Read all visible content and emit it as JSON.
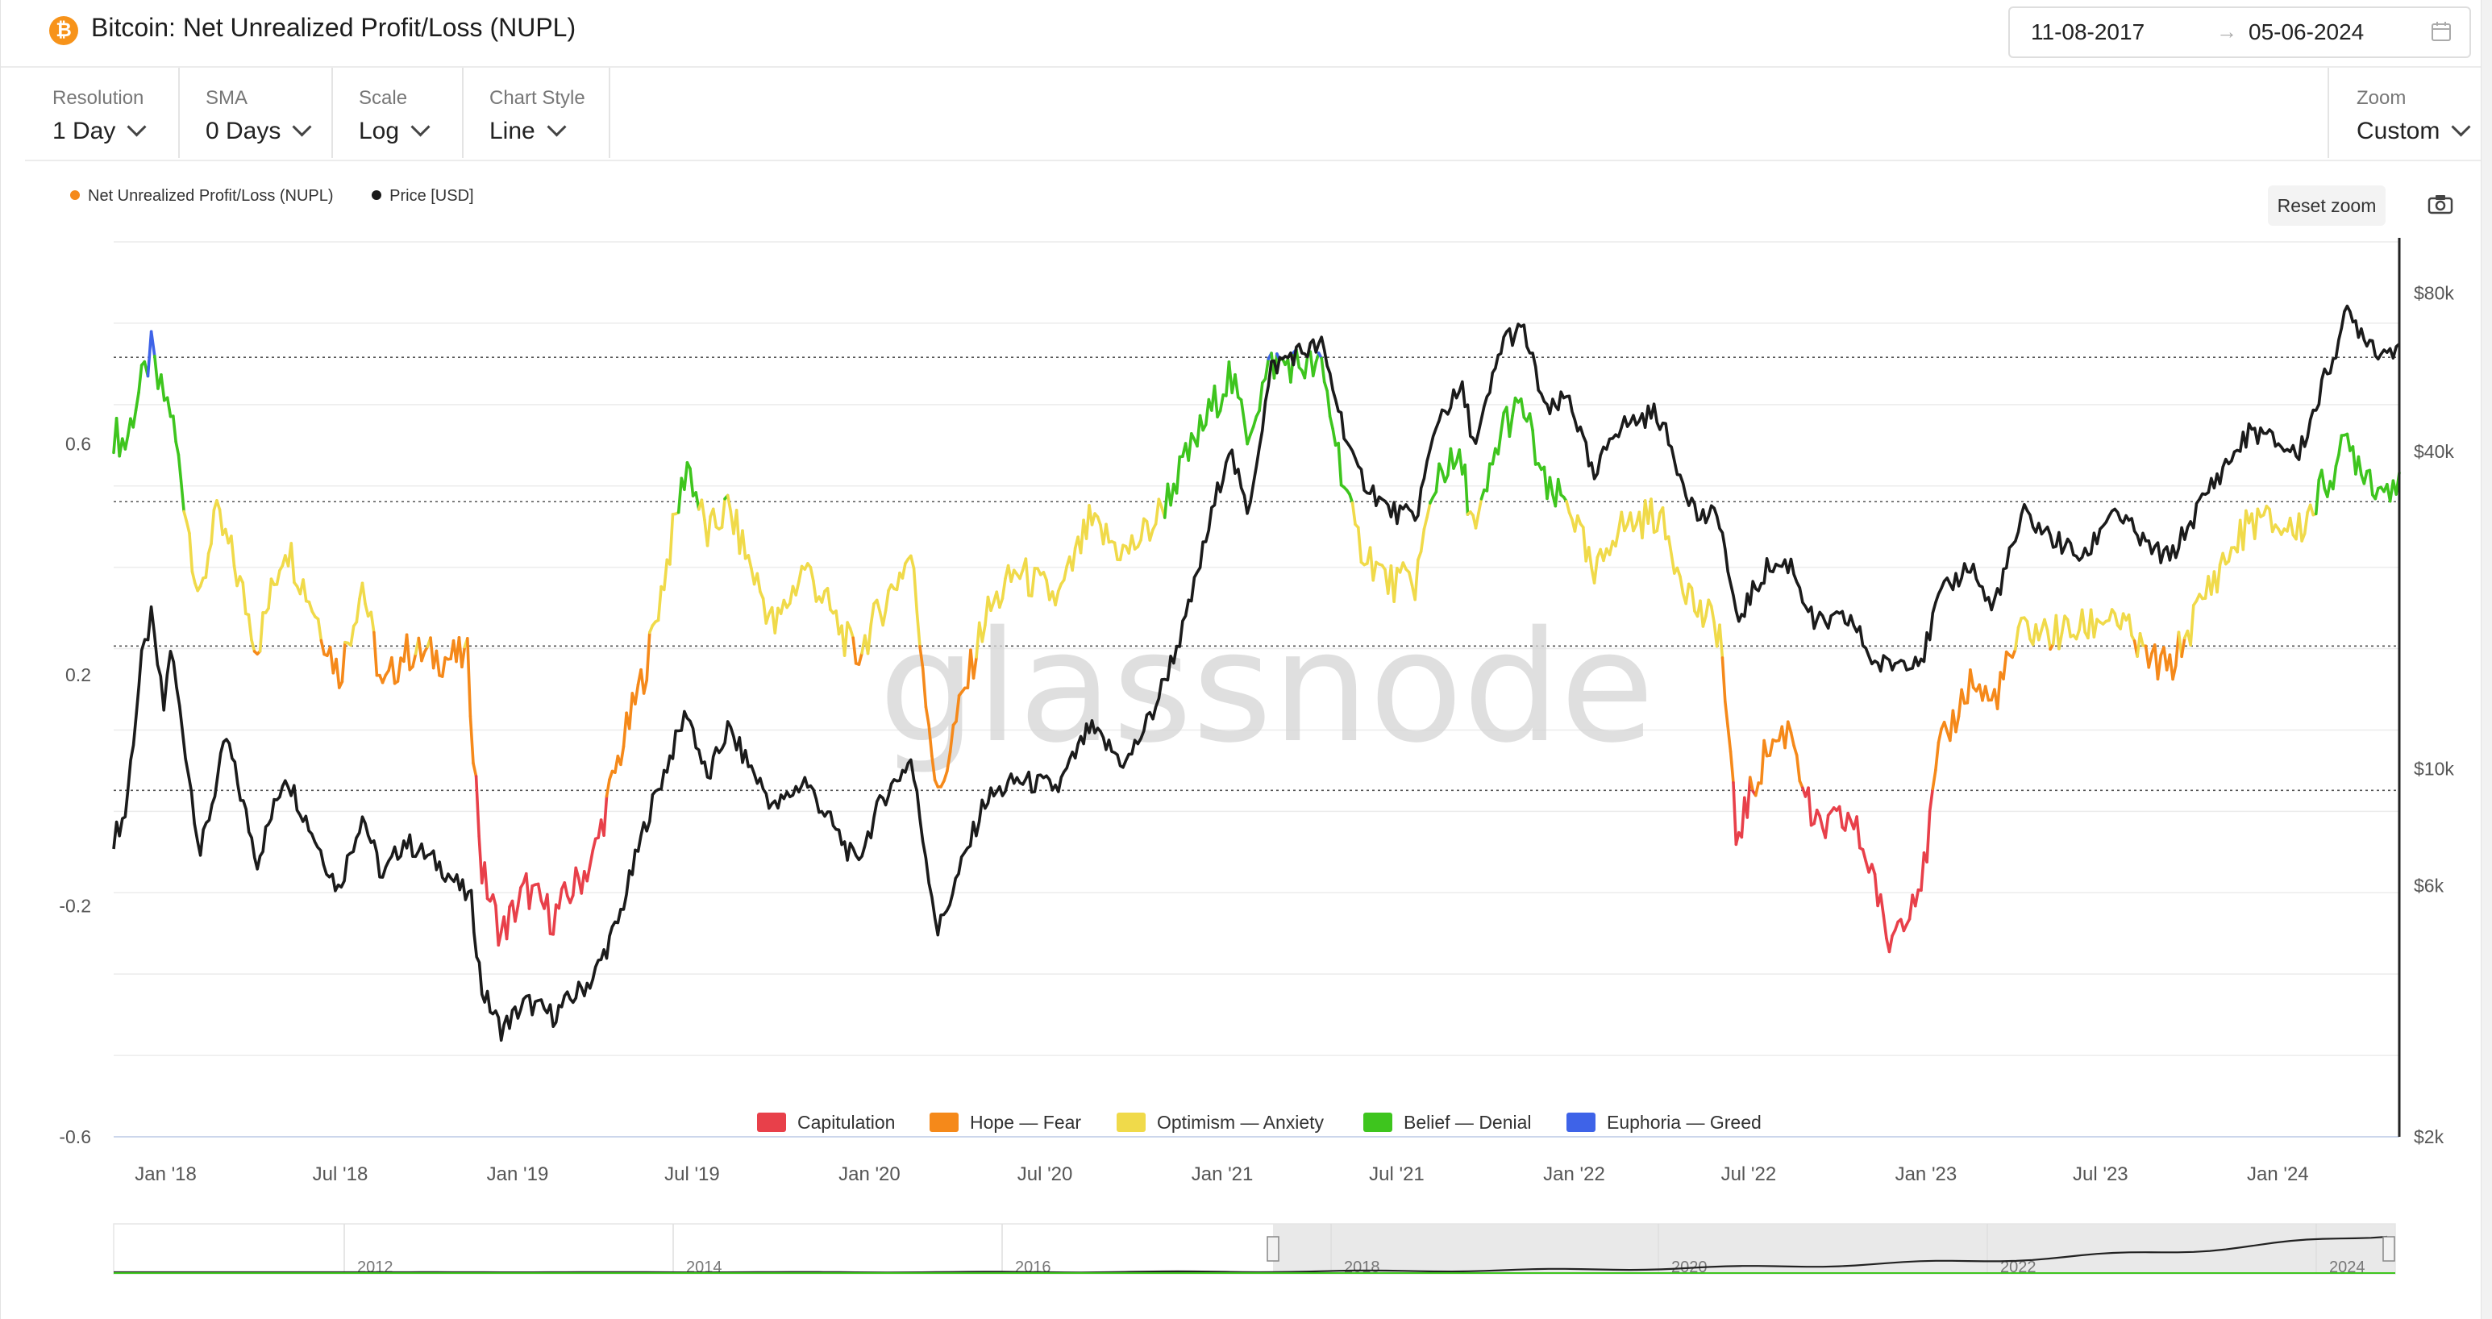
{
  "header": {
    "icon_glyph": "₿",
    "title": "Bitcoin: Net Unrealized Profit/Loss (NUPL)",
    "date_start": "11-08-2017",
    "date_arrow": "→",
    "date_end": "05-06-2024",
    "calendar_icon": "calendar-icon"
  },
  "controls": {
    "resolution": {
      "label": "Resolution",
      "value": "1 Day"
    },
    "sma": {
      "label": "SMA",
      "value": "0 Days"
    },
    "scale": {
      "label": "Scale",
      "value": "Log"
    },
    "chart_style": {
      "label": "Chart Style",
      "value": "Line"
    },
    "zoom": {
      "label": "Zoom",
      "value": "Custom"
    }
  },
  "toolbar": {
    "reset_zoom": "Reset zoom",
    "camera_icon": "camera-icon"
  },
  "watermark": "glassnode",
  "colors": {
    "capitulation": "#e8404a",
    "hope_fear": "#f5891a",
    "optimism_anxiety": "#f0da4a",
    "belief_denial": "#3ec51e",
    "euphoria_greed": "#3e63e8",
    "price": "#1b1b1b"
  },
  "chart_data": {
    "type": "line",
    "title": "Bitcoin: Net Unrealized Profit/Loss (NUPL)",
    "legend_top": [
      "Net Unrealized Profit/Loss (NUPL)",
      "Price [USD]"
    ],
    "legend_bottom": [
      "Capitulation",
      "Hope — Fear",
      "Optimism — Anxiety",
      "Belief — Denial",
      "Euphoria — Greed"
    ],
    "x_ticks": [
      "Jan '18",
      "Jul '18",
      "Jan '19",
      "Jul '19",
      "Jan '20",
      "Jul '20",
      "Jan '21",
      "Jul '21",
      "Jan '22",
      "Jul '22",
      "Jan '23",
      "Jul '23",
      "Jan '24"
    ],
    "y_left_ticks": [
      "0.6",
      "0.2",
      "-0.2",
      "-0.6"
    ],
    "y_left_range": [
      -0.6,
      0.95
    ],
    "y_right_ticks": [
      "$80k",
      "$40k",
      "$10k",
      "$6k",
      "$2k"
    ],
    "y_right_scale": "log",
    "y_right_range": [
      2000,
      100000
    ],
    "thresholds": [
      0.75,
      0.5,
      0.25,
      0.0
    ],
    "x_range": [
      "2017-11-08",
      "2024-05-06"
    ],
    "navigator_years": [
      "2012",
      "2014",
      "2016",
      "2018",
      "2020",
      "2022",
      "2024"
    ],
    "series": [
      {
        "name": "Net Unrealized Profit/Loss (NUPL)",
        "axis": "left",
        "points": [
          [
            "2017-11-08",
            0.62
          ],
          [
            "2017-11-20",
            0.6
          ],
          [
            "2017-12-01",
            0.67
          ],
          [
            "2017-12-10",
            0.72
          ],
          [
            "2017-12-17",
            0.76
          ],
          [
            "2017-12-24",
            0.7
          ],
          [
            "2018-01-06",
            0.66
          ],
          [
            "2018-01-17",
            0.54
          ],
          [
            "2018-02-06",
            0.32
          ],
          [
            "2018-02-20",
            0.48
          ],
          [
            "2018-03-10",
            0.41
          ],
          [
            "2018-04-06",
            0.25
          ],
          [
            "2018-05-05",
            0.43
          ],
          [
            "2018-06-05",
            0.31
          ],
          [
            "2018-06-30",
            0.2
          ],
          [
            "2018-07-24",
            0.36
          ],
          [
            "2018-08-14",
            0.17
          ],
          [
            "2018-09-05",
            0.24
          ],
          [
            "2018-10-15",
            0.23
          ],
          [
            "2018-11-10",
            0.23
          ],
          [
            "2018-11-25",
            -0.14
          ],
          [
            "2018-12-15",
            -0.25
          ],
          [
            "2019-01-10",
            -0.17
          ],
          [
            "2019-02-07",
            -0.22
          ],
          [
            "2019-03-20",
            -0.12
          ],
          [
            "2019-04-15",
            0.05
          ],
          [
            "2019-05-15",
            0.22
          ],
          [
            "2019-06-26",
            0.57
          ],
          [
            "2019-07-17",
            0.44
          ],
          [
            "2019-08-07",
            0.49
          ],
          [
            "2019-09-25",
            0.28
          ],
          [
            "2019-10-26",
            0.39
          ],
          [
            "2019-12-18",
            0.23
          ],
          [
            "2020-01-15",
            0.32
          ],
          [
            "2020-02-13",
            0.41
          ],
          [
            "2020-03-12",
            -0.02
          ],
          [
            "2020-03-28",
            0.1
          ],
          [
            "2020-04-30",
            0.3
          ],
          [
            "2020-06-02",
            0.38
          ],
          [
            "2020-07-15",
            0.33
          ],
          [
            "2020-08-16",
            0.46
          ],
          [
            "2020-09-23",
            0.41
          ],
          [
            "2020-10-21",
            0.46
          ],
          [
            "2020-11-24",
            0.57
          ],
          [
            "2021-01-08",
            0.72
          ],
          [
            "2021-01-27",
            0.62
          ],
          [
            "2021-02-21",
            0.74
          ],
          [
            "2021-03-13",
            0.74
          ],
          [
            "2021-04-14",
            0.73
          ],
          [
            "2021-05-19",
            0.44
          ],
          [
            "2021-06-22",
            0.36
          ],
          [
            "2021-07-20",
            0.36
          ],
          [
            "2021-08-14",
            0.56
          ],
          [
            "2021-09-07",
            0.56
          ],
          [
            "2021-09-21",
            0.44
          ],
          [
            "2021-10-20",
            0.64
          ],
          [
            "2021-11-10",
            0.66
          ],
          [
            "2021-12-04",
            0.51
          ],
          [
            "2021-12-27",
            0.5
          ],
          [
            "2022-01-22",
            0.36
          ],
          [
            "2022-02-10",
            0.45
          ],
          [
            "2022-03-28",
            0.48
          ],
          [
            "2022-05-09",
            0.31
          ],
          [
            "2022-06-01",
            0.28
          ],
          [
            "2022-06-18",
            -0.08
          ],
          [
            "2022-07-20",
            0.07
          ],
          [
            "2022-08-14",
            0.11
          ],
          [
            "2022-09-07",
            -0.07
          ],
          [
            "2022-10-15",
            -0.05
          ],
          [
            "2022-11-09",
            -0.15
          ],
          [
            "2022-11-21",
            -0.27
          ],
          [
            "2022-12-30",
            -0.14
          ],
          [
            "2023-01-14",
            0.06
          ],
          [
            "2023-02-16",
            0.19
          ],
          [
            "2023-03-10",
            0.15
          ],
          [
            "2023-04-13",
            0.28
          ],
          [
            "2023-05-10",
            0.27
          ],
          [
            "2023-06-15",
            0.28
          ],
          [
            "2023-07-13",
            0.31
          ],
          [
            "2023-08-17",
            0.23
          ],
          [
            "2023-09-11",
            0.21
          ],
          [
            "2023-10-24",
            0.36
          ],
          [
            "2023-12-05",
            0.47
          ],
          [
            "2024-01-23",
            0.45
          ],
          [
            "2024-03-13",
            0.6
          ],
          [
            "2024-04-17",
            0.52
          ],
          [
            "2024-05-06",
            0.55
          ]
        ]
      },
      {
        "name": "Price [USD]",
        "axis": "right",
        "points": [
          [
            "2017-11-08",
            7400
          ],
          [
            "2017-11-20",
            8200
          ],
          [
            "2017-12-07",
            16000
          ],
          [
            "2017-12-17",
            19300
          ],
          [
            "2017-12-30",
            13000
          ],
          [
            "2018-01-06",
            17000
          ],
          [
            "2018-02-06",
            6900
          ],
          [
            "2018-03-05",
            11400
          ],
          [
            "2018-04-06",
            6700
          ],
          [
            "2018-05-05",
            9800
          ],
          [
            "2018-06-29",
            5900
          ],
          [
            "2018-07-24",
            8200
          ],
          [
            "2018-08-14",
            6200
          ],
          [
            "2018-09-05",
            7300
          ],
          [
            "2018-10-15",
            6500
          ],
          [
            "2018-11-14",
            5600
          ],
          [
            "2018-11-25",
            3800
          ],
          [
            "2018-12-15",
            3200
          ],
          [
            "2019-01-10",
            3600
          ],
          [
            "2019-02-07",
            3400
          ],
          [
            "2019-03-20",
            4000
          ],
          [
            "2019-04-15",
            5100
          ],
          [
            "2019-05-15",
            8000
          ],
          [
            "2019-06-26",
            12900
          ],
          [
            "2019-07-17",
            9500
          ],
          [
            "2019-08-07",
            11900
          ],
          [
            "2019-09-25",
            8400
          ],
          [
            "2019-10-26",
            9500
          ],
          [
            "2019-12-18",
            6600
          ],
          [
            "2020-01-15",
            8800
          ],
          [
            "2020-02-13",
            10400
          ],
          [
            "2020-03-12",
            4900
          ],
          [
            "2020-04-30",
            8700
          ],
          [
            "2020-06-02",
            9500
          ],
          [
            "2020-07-15",
            9200
          ],
          [
            "2020-08-16",
            11900
          ],
          [
            "2020-09-23",
            10200
          ],
          [
            "2020-10-21",
            12800
          ],
          [
            "2020-11-24",
            19000
          ],
          [
            "2021-01-08",
            41000
          ],
          [
            "2021-01-27",
            30400
          ],
          [
            "2021-02-21",
            57500
          ],
          [
            "2021-03-13",
            61000
          ],
          [
            "2021-04-14",
            63500
          ],
          [
            "2021-05-19",
            37000
          ],
          [
            "2021-06-22",
            31000
          ],
          [
            "2021-07-20",
            29800
          ],
          [
            "2021-08-14",
            47000
          ],
          [
            "2021-09-07",
            52000
          ],
          [
            "2021-09-21",
            40700
          ],
          [
            "2021-10-20",
            66000
          ],
          [
            "2021-11-10",
            67500
          ],
          [
            "2021-12-04",
            47000
          ],
          [
            "2021-12-27",
            51000
          ],
          [
            "2022-01-22",
            35000
          ],
          [
            "2022-02-10",
            44000
          ],
          [
            "2022-03-28",
            47500
          ],
          [
            "2022-05-09",
            30100
          ],
          [
            "2022-06-01",
            30000
          ],
          [
            "2022-06-18",
            19000
          ],
          [
            "2022-07-20",
            24000
          ],
          [
            "2022-08-14",
            24500
          ],
          [
            "2022-09-07",
            18800
          ],
          [
            "2022-10-15",
            19200
          ],
          [
            "2022-11-09",
            15800
          ],
          [
            "2022-11-21",
            15700
          ],
          [
            "2022-12-30",
            16500
          ],
          [
            "2023-01-14",
            21000
          ],
          [
            "2023-02-16",
            24500
          ],
          [
            "2023-03-10",
            20000
          ],
          [
            "2023-04-13",
            30400
          ],
          [
            "2023-05-10",
            27500
          ],
          [
            "2023-06-15",
            25000
          ],
          [
            "2023-07-13",
            31400
          ],
          [
            "2023-08-17",
            26500
          ],
          [
            "2023-09-11",
            25000
          ],
          [
            "2023-10-24",
            34500
          ],
          [
            "2023-12-05",
            44000
          ],
          [
            "2024-01-23",
            39500
          ],
          [
            "2024-03-13",
            73000
          ],
          [
            "2024-04-17",
            61500
          ],
          [
            "2024-05-06",
            64000
          ]
        ]
      }
    ]
  }
}
